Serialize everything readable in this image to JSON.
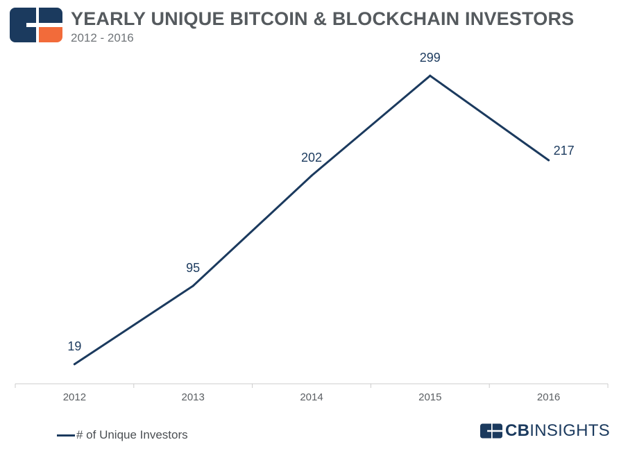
{
  "header": {
    "title": "YEARLY UNIQUE BITCOIN & BLOCKCHAIN INVESTORS",
    "subtitle": "2012 - 2016",
    "logo_icon": "cb-insights-logo-icon"
  },
  "colors": {
    "line": "#1b3a5e",
    "logo_navy": "#1b3a5e",
    "logo_orange": "#f26b3a",
    "axis": "#cccccc"
  },
  "chart_data": {
    "type": "line",
    "categories": [
      "2012",
      "2013",
      "2014",
      "2015",
      "2016"
    ],
    "series": [
      {
        "name": "# of Unique Investors",
        "values": [
          19,
          95,
          202,
          299,
          217
        ]
      }
    ],
    "title": "YEARLY UNIQUE BITCOIN & BLOCKCHAIN INVESTORS",
    "subtitle": "2012 - 2016",
    "xlabel": "",
    "ylabel": "",
    "ylim": [
      0,
      320
    ],
    "grid": false,
    "data_labels": true,
    "legend": "bottom-left"
  },
  "legend": {
    "label": "# of Unique Investors"
  },
  "brand": {
    "cb": "CB",
    "insights": "INSIGHTS"
  }
}
